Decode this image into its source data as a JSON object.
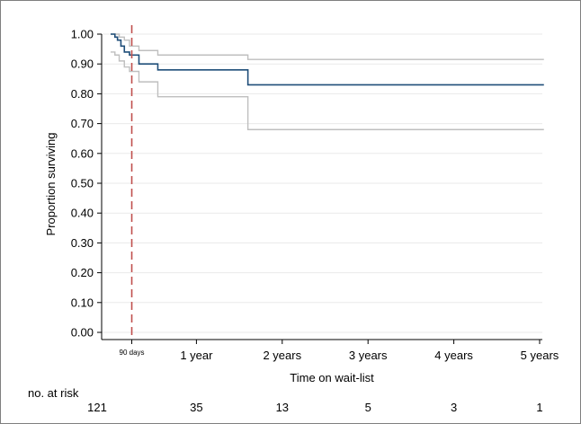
{
  "chart_data": {
    "type": "line",
    "title": "",
    "xlabel": "Time on wait-list",
    "ylabel": "Proportion surviving",
    "xlim": [
      0,
      5
    ],
    "ylim": [
      0,
      1
    ],
    "x_units": "years",
    "y_ticks": [
      "0.00",
      "0.10",
      "0.20",
      "0.30",
      "0.40",
      "0.50",
      "0.60",
      "0.70",
      "0.80",
      "0.90",
      "1.00"
    ],
    "x_ticks": [
      {
        "value": 1,
        "label": "1 year"
      },
      {
        "value": 2,
        "label": "2 years"
      },
      {
        "value": 3,
        "label": "3 years"
      },
      {
        "value": 4,
        "label": "4 years"
      },
      {
        "value": 5,
        "label": "5 years"
      }
    ],
    "grid": true,
    "reference_line": {
      "x": 0.2466,
      "label": "90 days",
      "color": "#c0504d",
      "style": "dashed"
    },
    "series": [
      {
        "role": "estimate",
        "color": "#1f4e79",
        "x": [
          0,
          0.05,
          0.08,
          0.12,
          0.16,
          0.22,
          0.33,
          0.55,
          1.6,
          5.05
        ],
        "y": [
          1.0,
          0.99,
          0.98,
          0.96,
          0.94,
          0.93,
          0.9,
          0.88,
          0.83,
          0.83
        ]
      },
      {
        "role": "upper-ci",
        "color": "#bfbfbf",
        "x": [
          0,
          0.05,
          0.1,
          0.16,
          0.22,
          0.33,
          0.55,
          1.6,
          5.05
        ],
        "y": [
          1.0,
          1.0,
          0.99,
          0.98,
          0.96,
          0.945,
          0.93,
          0.915,
          0.915
        ]
      },
      {
        "role": "lower-ci",
        "color": "#bfbfbf",
        "x": [
          0,
          0.05,
          0.1,
          0.16,
          0.22,
          0.33,
          0.55,
          1.6,
          5.05
        ],
        "y": [
          0.94,
          0.93,
          0.91,
          0.89,
          0.875,
          0.84,
          0.79,
          0.68,
          0.68
        ]
      }
    ],
    "risk_table": {
      "label": "no. at risk",
      "times": [
        0,
        1,
        2,
        3,
        4,
        5
      ],
      "values": [
        "121",
        "35",
        "13",
        "5",
        "3",
        "1"
      ]
    }
  }
}
